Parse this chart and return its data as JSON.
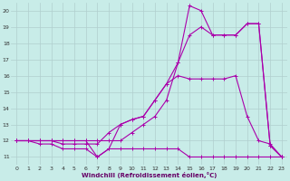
{
  "xlabel": "Windchill (Refroidissement éolien,°C)",
  "background_color": "#c8ece8",
  "grid_color": "#b0cece",
  "line_color": "#aa00aa",
  "xlim": [
    -0.5,
    23.5
  ],
  "ylim": [
    10.5,
    20.5
  ],
  "xticks": [
    0,
    1,
    2,
    3,
    4,
    5,
    6,
    7,
    8,
    9,
    10,
    11,
    12,
    13,
    14,
    15,
    16,
    17,
    18,
    19,
    20,
    21,
    22,
    23
  ],
  "yticks": [
    11,
    12,
    13,
    14,
    15,
    16,
    17,
    18,
    19,
    20
  ],
  "series1_x": [
    0,
    1,
    2,
    3,
    4,
    5,
    6,
    7,
    8,
    9,
    10,
    11,
    12,
    13,
    14,
    15,
    16,
    17,
    18,
    19,
    20,
    21,
    22,
    23
  ],
  "series1_y": [
    12,
    12,
    12,
    12,
    12,
    12,
    12,
    11,
    11.5,
    11.5,
    11.5,
    11.5,
    11.5,
    11.5,
    11.5,
    11,
    11,
    11,
    11,
    11,
    11,
    11,
    11,
    11
  ],
  "series2_x": [
    0,
    1,
    2,
    3,
    4,
    5,
    6,
    7,
    8,
    9,
    10,
    11,
    12,
    13,
    14,
    15,
    16,
    17,
    18,
    19,
    20,
    21,
    22,
    23
  ],
  "series2_y": [
    12,
    12,
    12,
    12,
    12,
    12,
    12,
    12,
    12,
    12,
    12.5,
    13,
    13.5,
    14.5,
    16.8,
    18.5,
    19,
    18.5,
    18.5,
    18.5,
    19.2,
    19.2,
    11.7,
    11
  ],
  "series3_x": [
    0,
    1,
    2,
    3,
    4,
    5,
    6,
    7,
    8,
    9,
    10,
    11,
    12,
    13,
    14,
    15,
    16,
    17,
    18,
    19,
    20,
    21,
    22,
    23
  ],
  "series3_y": [
    12,
    12,
    12,
    12,
    11.8,
    11.8,
    11.8,
    11.8,
    12.5,
    13,
    13.3,
    13.5,
    14.5,
    15.5,
    16.8,
    20.3,
    20,
    18.5,
    18.5,
    18.5,
    19.2,
    19.2,
    11.7,
    11
  ],
  "series4_x": [
    0,
    1,
    2,
    3,
    4,
    5,
    6,
    7,
    8,
    9,
    10,
    11,
    12,
    13,
    14,
    15,
    16,
    17,
    18,
    19,
    20,
    21,
    22,
    23
  ],
  "series4_y": [
    12,
    12,
    11.8,
    11.8,
    11.5,
    11.5,
    11.5,
    11,
    11.5,
    13,
    13.3,
    13.5,
    14.5,
    15.5,
    16,
    15.8,
    15.8,
    15.8,
    15.8,
    16,
    13.5,
    12,
    11.8,
    11
  ]
}
